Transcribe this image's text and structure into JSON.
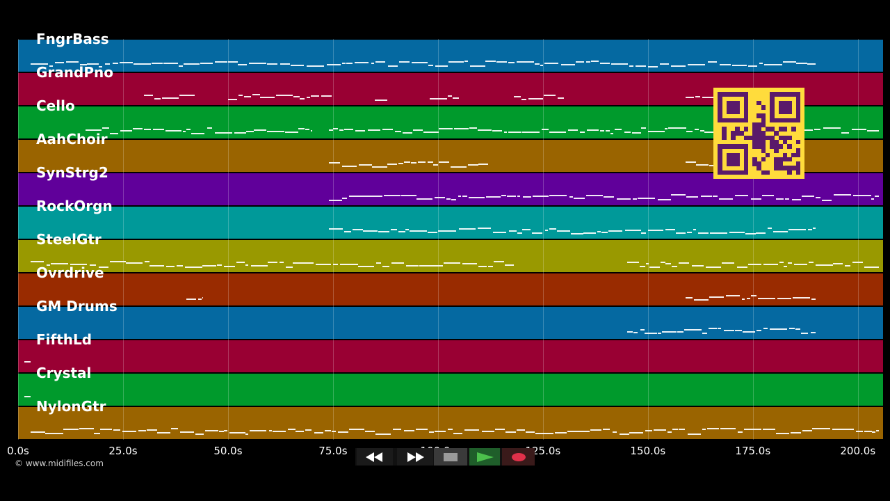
{
  "tracks": [
    {
      "name": "FngrBass",
      "color": "#0569a1"
    },
    {
      "name": "GrandPno",
      "color": "#990033"
    },
    {
      "name": "Cello",
      "color": "#009a2c"
    },
    {
      "name": "AahChoir",
      "color": "#9a6400"
    },
    {
      "name": "SynStrg2",
      "color": "#60009a"
    },
    {
      "name": "RockOrgn",
      "color": "#009999"
    },
    {
      "name": "SteelGtr",
      "color": "#999900"
    },
    {
      "name": "Ovrdrive",
      "color": "#992b00"
    },
    {
      "name": "GM Drums",
      "color": "#0569a1"
    },
    {
      "name": "FifthLd",
      "color": "#990033"
    },
    {
      "name": "Crystal",
      "color": "#009a2c"
    },
    {
      "name": "NylonGtr",
      "color": "#9a6400"
    }
  ],
  "time_axis": {
    "ticks": [
      "0.0s",
      "25.0s",
      "50.0s",
      "75.0s",
      "100.0s",
      "125.0s",
      "150.0s",
      "175.0s",
      "200.0s"
    ],
    "tick_values": [
      0,
      25,
      50,
      75,
      100,
      125,
      150,
      175,
      200
    ],
    "range": [
      0,
      206
    ]
  },
  "copyright": "© www.midifiles.com",
  "transport": {
    "rewind_icon": "rewind-icon",
    "forward_icon": "fast-forward-icon",
    "stop_icon": "stop-icon",
    "play_icon": "play-icon",
    "record_icon": "record-icon"
  },
  "qr_code": {
    "color": "#ffdc3c",
    "fg": "#5a1a6a"
  }
}
